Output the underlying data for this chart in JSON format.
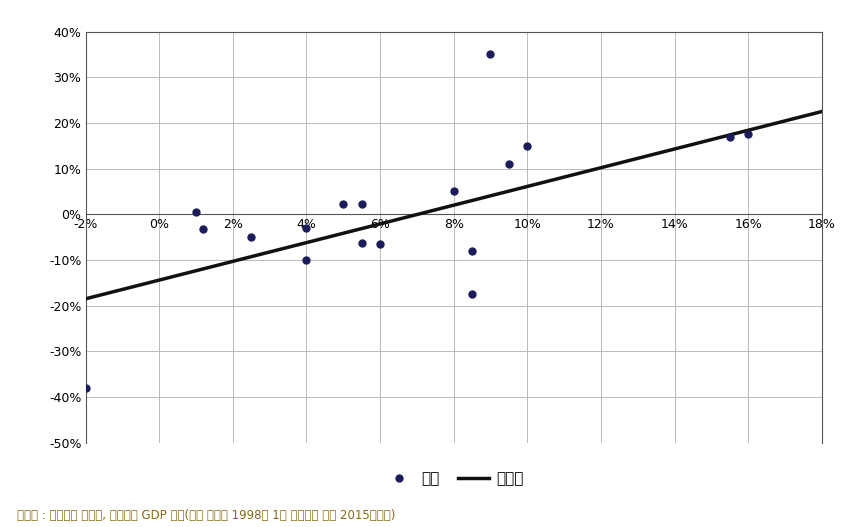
{
  "scatter_points": [
    [
      -0.02,
      -0.38
    ],
    [
      0.01,
      0.005
    ],
    [
      0.012,
      -0.032
    ],
    [
      0.025,
      -0.05
    ],
    [
      0.04,
      -0.1
    ],
    [
      0.04,
      -0.03
    ],
    [
      0.05,
      0.022
    ],
    [
      0.055,
      0.022
    ],
    [
      0.055,
      -0.062
    ],
    [
      0.06,
      -0.065
    ],
    [
      0.08,
      0.05
    ],
    [
      0.085,
      -0.08
    ],
    [
      0.085,
      -0.175
    ],
    [
      0.09,
      0.35
    ],
    [
      0.095,
      0.11
    ],
    [
      0.1,
      0.15
    ],
    [
      0.155,
      0.17
    ],
    [
      0.16,
      0.175
    ]
  ],
  "trend_x": [
    -0.02,
    0.18
  ],
  "trend_y": [
    -0.185,
    0.225
  ],
  "xlim": [
    -0.02,
    0.18
  ],
  "ylim": [
    -0.5,
    0.4
  ],
  "xticks": [
    -0.02,
    0.0,
    0.02,
    0.04,
    0.06,
    0.08,
    0.1,
    0.12,
    0.14,
    0.16,
    0.18
  ],
  "yticks": [
    -0.5,
    -0.4,
    -0.3,
    -0.2,
    -0.1,
    0.0,
    0.1,
    0.2,
    0.3,
    0.4
  ],
  "scatter_color": "#1c1c5c",
  "trend_color": "#111111",
  "legend_scatter_label": "신문",
  "legend_line_label": "추정식",
  "footnote": "자료원 : 제일기획 광고비, 한국은행 GDP 통계(분석 기간은 1998년 1차 외환위기 이후 2015년까지)",
  "bg_color": "#ffffff",
  "grid_color": "#bbbbbb",
  "border_color": "#555555"
}
